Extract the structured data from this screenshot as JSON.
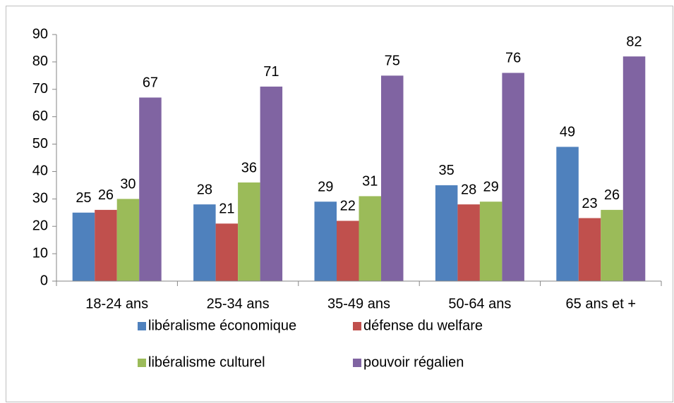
{
  "chart_data": {
    "type": "bar",
    "categories": [
      "18-24 ans",
      "25-34 ans",
      "35-49 ans",
      "50-64 ans",
      "65 ans et +"
    ],
    "series": [
      {
        "name": "libéralisme économique",
        "color": "#4f81bd",
        "values": [
          25,
          28,
          29,
          35,
          49
        ]
      },
      {
        "name": "défense du welfare",
        "color": "#c0504d",
        "values": [
          26,
          21,
          22,
          28,
          23
        ]
      },
      {
        "name": "libéralisme culturel",
        "color": "#9bbb59",
        "values": [
          30,
          36,
          31,
          29,
          26
        ]
      },
      {
        "name": "pouvoir régalien",
        "color": "#8064a2",
        "values": [
          67,
          71,
          75,
          76,
          82
        ]
      }
    ],
    "ylim": [
      0,
      90
    ],
    "yticks": [
      0,
      10,
      20,
      30,
      40,
      50,
      60,
      70,
      80,
      90
    ],
    "grid": false,
    "legend": "bottom"
  }
}
